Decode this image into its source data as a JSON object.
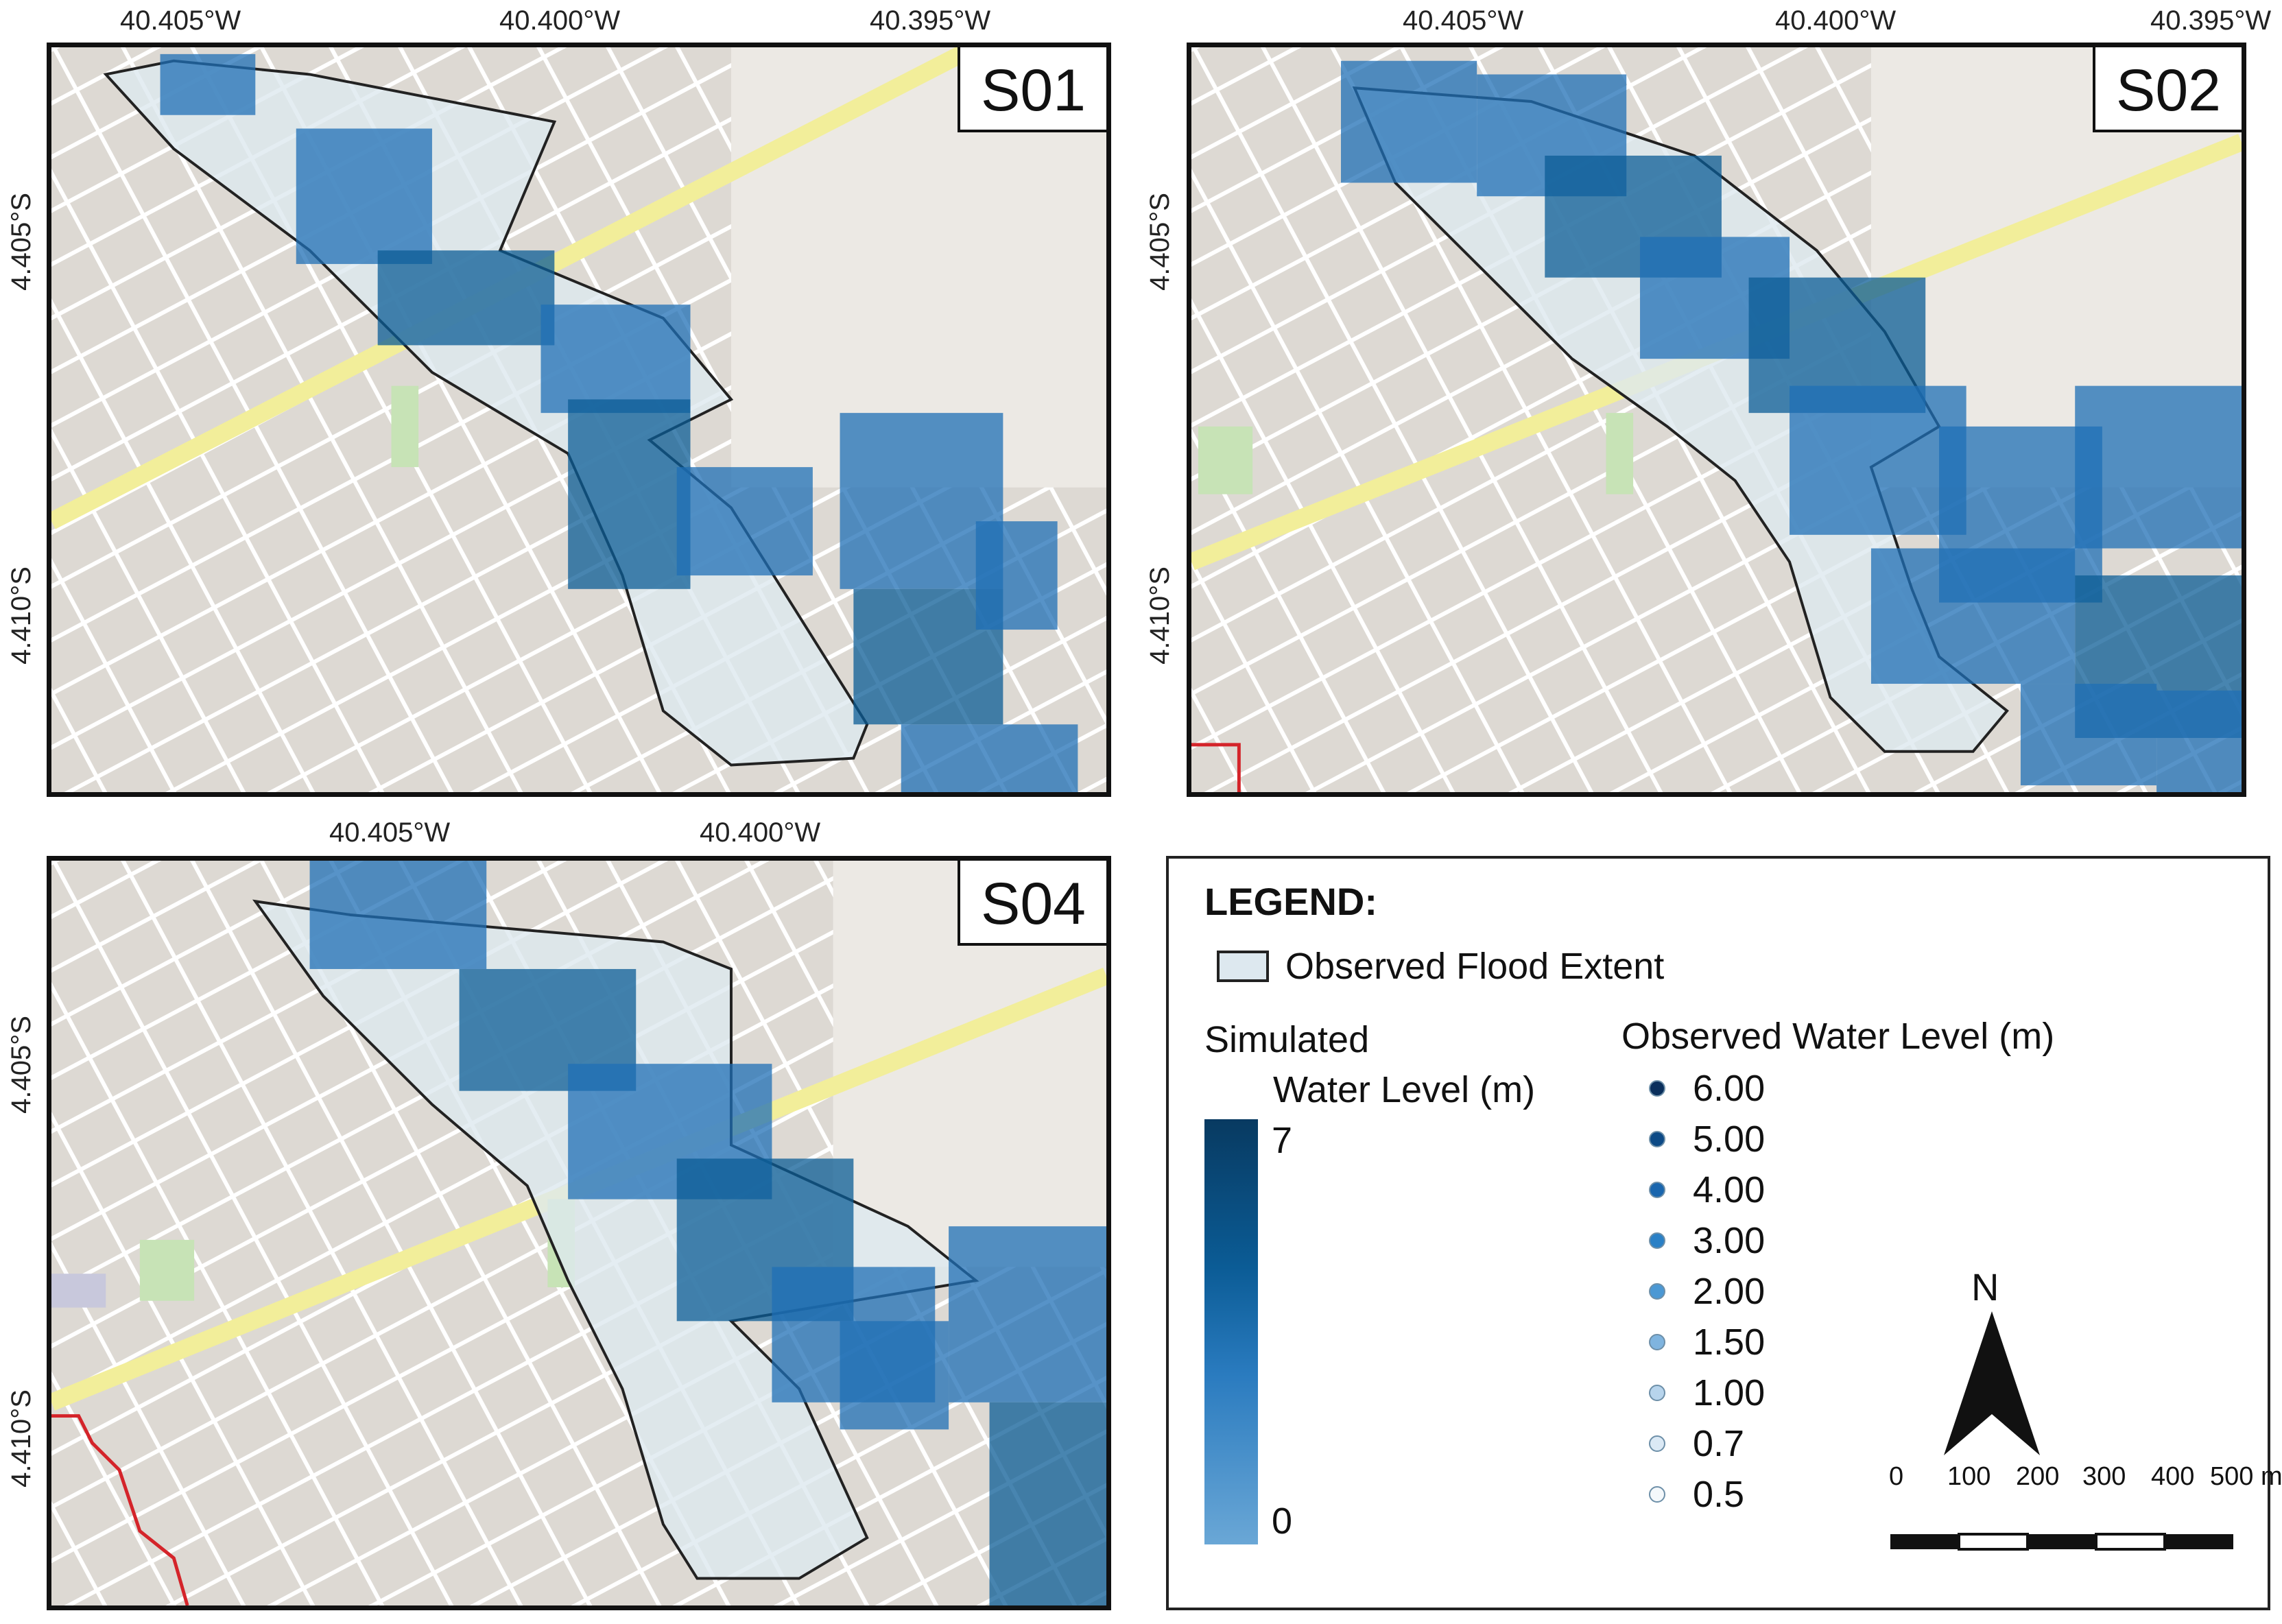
{
  "colors": {
    "flood_fill": "#dde8ef",
    "flood_outline": "#222222",
    "water_dark": "#083a61",
    "water_light": "#6aa7d6",
    "road_major": "#f2ee9a",
    "park": "#c7e3b6",
    "boundary_red": "#d4242a"
  },
  "panels": [
    {
      "label": "S01",
      "top_ticks": [
        "40.405°W",
        "40.400°W",
        "40.395°W"
      ],
      "left_ticks": [
        "4.405°S",
        "4.410°S"
      ]
    },
    {
      "label": "S02",
      "top_ticks": [
        "40.405°W",
        "40.400°W",
        "40.395°W"
      ],
      "left_ticks": [
        "4.405°S",
        "4.410°S"
      ]
    },
    {
      "label": "S04",
      "top_ticks": [
        "40.405°W",
        "40.400°W"
      ],
      "left_ticks": [
        "4.405°S",
        "4.410°S"
      ]
    }
  ],
  "legend": {
    "title": "LEGEND:",
    "flood_label": "Observed Flood Extent",
    "sim_title_1": "Simulated",
    "sim_title_2": "Water Level (m)",
    "ramp_max": "7",
    "ramp_min": "0",
    "obs_title": "Observed Water Level (m)",
    "obs_levels": [
      "6.00",
      "5.00",
      "4.00",
      "3.00",
      "2.00",
      "1.50",
      "1.00",
      "0.7",
      "0.5"
    ],
    "north_label": "N",
    "scale_ticks": [
      "0",
      "100",
      "200",
      "300",
      "400",
      "500 m"
    ]
  }
}
